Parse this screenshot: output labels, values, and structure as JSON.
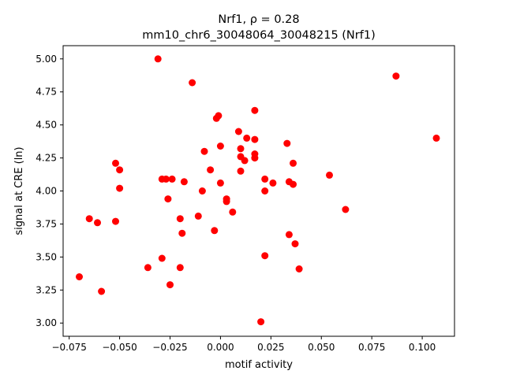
{
  "chart_data": {
    "type": "scatter",
    "title_line1": "Nrf1, ρ = 0.28",
    "title_line2": "mm10_chr6_30048064_30048215 (Nrf1)",
    "xlabel": "motif activity",
    "ylabel": "signal at CRE (ln)",
    "xlim": [
      -0.078,
      0.116
    ],
    "ylim": [
      2.9,
      5.1
    ],
    "xticks": [
      -0.075,
      -0.05,
      -0.025,
      0.0,
      0.025,
      0.05,
      0.075,
      0.1
    ],
    "xtick_labels": [
      "−0.075",
      "−0.050",
      "−0.025",
      "0.000",
      "0.025",
      "0.050",
      "0.075",
      "0.100"
    ],
    "yticks": [
      3.0,
      3.25,
      3.5,
      3.75,
      4.0,
      4.25,
      4.5,
      4.75,
      5.0
    ],
    "ytick_labels": [
      "3.00",
      "3.25",
      "3.50",
      "3.75",
      "4.00",
      "4.25",
      "4.50",
      "4.75",
      "5.00"
    ],
    "grid": false,
    "marker_color": "#ff0000",
    "points": [
      {
        "x": -0.031,
        "y": 5.0
      },
      {
        "x": -0.014,
        "y": 4.82
      },
      {
        "x": 0.087,
        "y": 4.87
      },
      {
        "x": 0.107,
        "y": 4.4
      },
      {
        "x": 0.017,
        "y": 4.61
      },
      {
        "x": -0.001,
        "y": 4.57
      },
      {
        "x": -0.002,
        "y": 4.55
      },
      {
        "x": 0.009,
        "y": 4.45
      },
      {
        "x": 0.013,
        "y": 4.4
      },
      {
        "x": 0.017,
        "y": 4.39
      },
      {
        "x": 0.033,
        "y": 4.36
      },
      {
        "x": 0.0,
        "y": 4.34
      },
      {
        "x": 0.01,
        "y": 4.32
      },
      {
        "x": -0.008,
        "y": 4.3
      },
      {
        "x": 0.017,
        "y": 4.28
      },
      {
        "x": 0.01,
        "y": 4.26
      },
      {
        "x": 0.017,
        "y": 4.25
      },
      {
        "x": 0.012,
        "y": 4.23
      },
      {
        "x": -0.052,
        "y": 4.21
      },
      {
        "x": 0.036,
        "y": 4.21
      },
      {
        "x": -0.05,
        "y": 4.16
      },
      {
        "x": -0.005,
        "y": 4.16
      },
      {
        "x": 0.01,
        "y": 4.15
      },
      {
        "x": 0.054,
        "y": 4.12
      },
      {
        "x": -0.029,
        "y": 4.09
      },
      {
        "x": -0.027,
        "y": 4.09
      },
      {
        "x": -0.024,
        "y": 4.09
      },
      {
        "x": 0.022,
        "y": 4.09
      },
      {
        "x": 0.034,
        "y": 4.07
      },
      {
        "x": -0.018,
        "y": 4.07
      },
      {
        "x": 0.0,
        "y": 4.06
      },
      {
        "x": 0.026,
        "y": 4.06
      },
      {
        "x": 0.036,
        "y": 4.05
      },
      {
        "x": -0.05,
        "y": 4.02
      },
      {
        "x": -0.009,
        "y": 4.0
      },
      {
        "x": 0.022,
        "y": 4.0
      },
      {
        "x": -0.026,
        "y": 3.94
      },
      {
        "x": 0.003,
        "y": 3.94
      },
      {
        "x": 0.003,
        "y": 3.92
      },
      {
        "x": 0.062,
        "y": 3.86
      },
      {
        "x": 0.006,
        "y": 3.84
      },
      {
        "x": -0.011,
        "y": 3.81
      },
      {
        "x": -0.065,
        "y": 3.79
      },
      {
        "x": -0.02,
        "y": 3.79
      },
      {
        "x": -0.052,
        "y": 3.77
      },
      {
        "x": -0.061,
        "y": 3.76
      },
      {
        "x": -0.003,
        "y": 3.7
      },
      {
        "x": -0.019,
        "y": 3.68
      },
      {
        "x": 0.034,
        "y": 3.67
      },
      {
        "x": 0.037,
        "y": 3.6
      },
      {
        "x": 0.022,
        "y": 3.51
      },
      {
        "x": -0.029,
        "y": 3.49
      },
      {
        "x": -0.02,
        "y": 3.42
      },
      {
        "x": -0.036,
        "y": 3.42
      },
      {
        "x": 0.039,
        "y": 3.41
      },
      {
        "x": -0.07,
        "y": 3.35
      },
      {
        "x": -0.025,
        "y": 3.29
      },
      {
        "x": -0.059,
        "y": 3.24
      },
      {
        "x": 0.02,
        "y": 3.01
      }
    ]
  }
}
